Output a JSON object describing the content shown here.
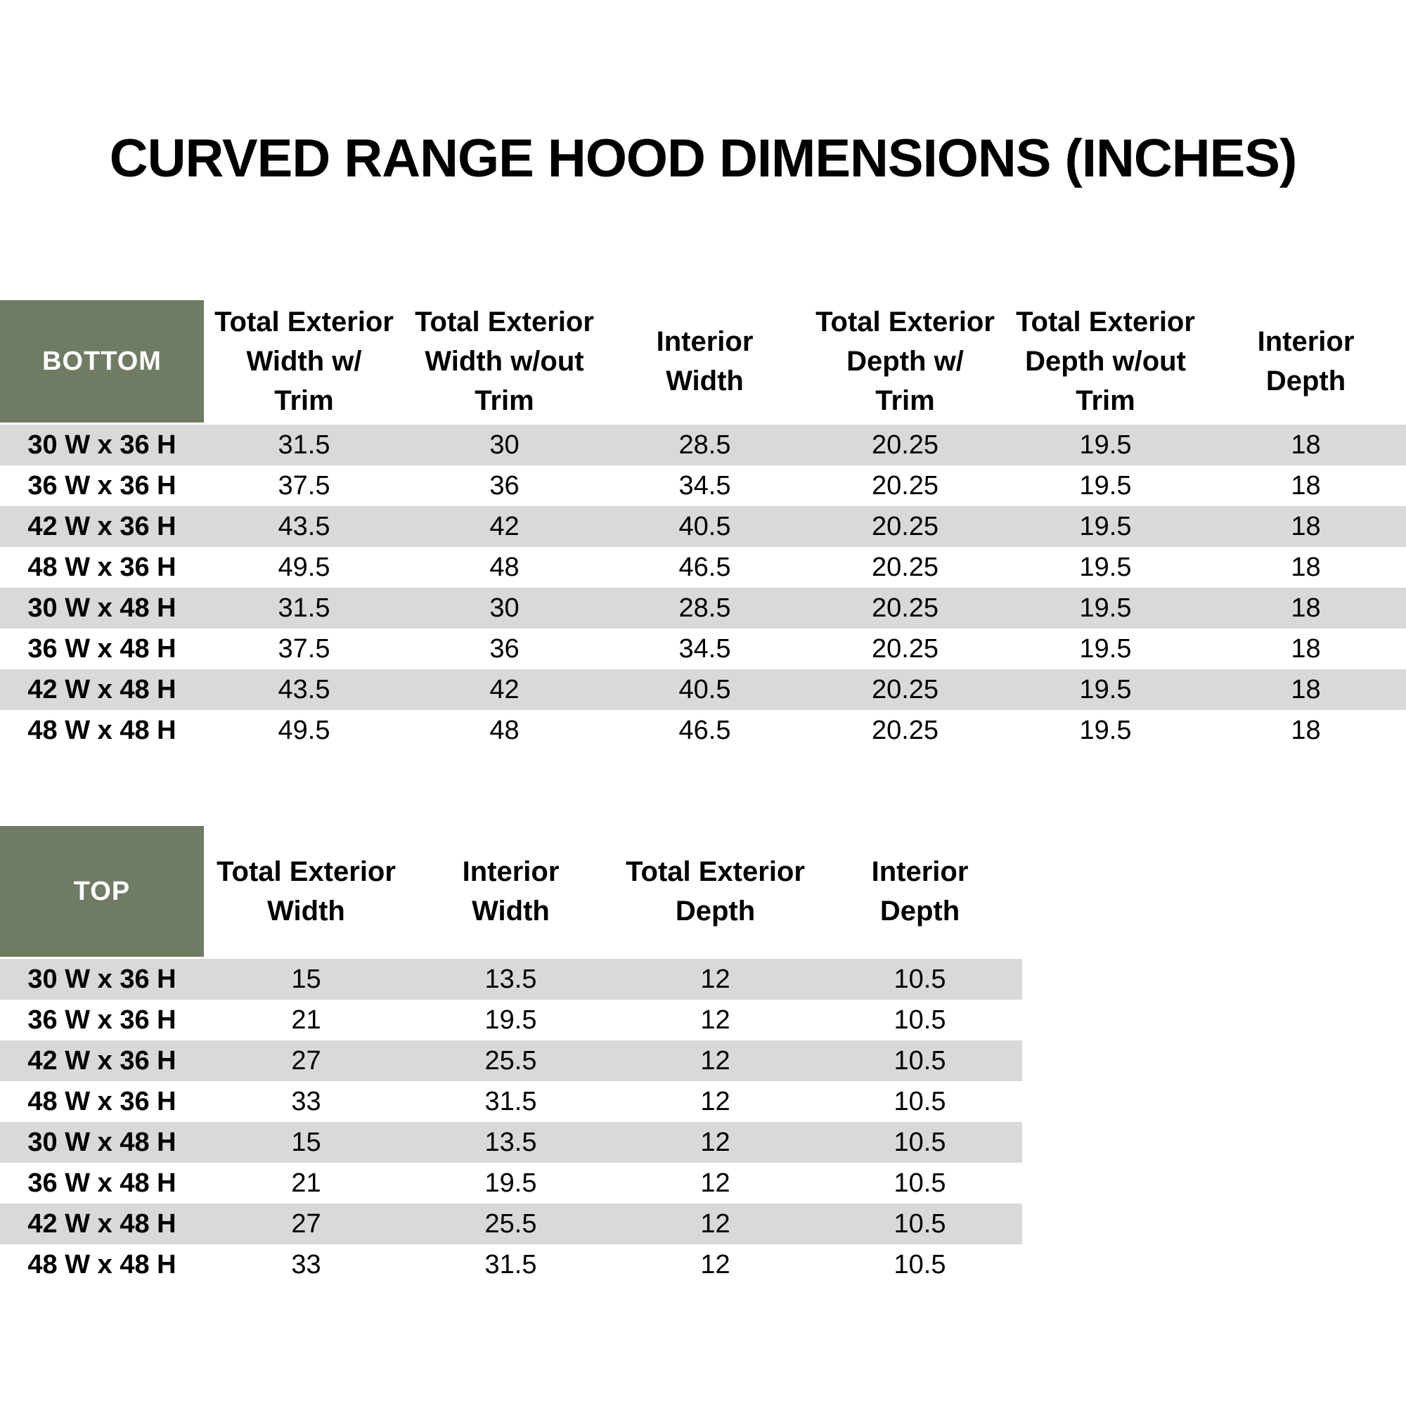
{
  "page": {
    "title": "CURVED RANGE HOOD DIMENSIONS (INCHES)"
  },
  "colors": {
    "header_green": "#6F7B62",
    "stripe_gray": "#D9D9D9",
    "header_text": "#FFFFFF",
    "body_text": "#000000",
    "page_bg": "#FFFFFF"
  },
  "bottom_table": {
    "corner_label": "BOTTOM",
    "column_headers": [
      {
        "lines": [
          "Total Exterior",
          "Width w/",
          "Trim"
        ]
      },
      {
        "lines": [
          "Total Exterior",
          "Width w/out",
          "Trim"
        ]
      },
      {
        "lines": [
          "Interior",
          "Width"
        ]
      },
      {
        "lines": [
          "Total Exterior",
          "Depth w/",
          "Trim"
        ]
      },
      {
        "lines": [
          "Total Exterior",
          "Depth w/out",
          "Trim"
        ]
      },
      {
        "lines": [
          "Interior",
          "Depth"
        ]
      }
    ],
    "rows": [
      {
        "label": "30 W x 36 H",
        "values": [
          "31.5",
          "30",
          "28.5",
          "20.25",
          "19.5",
          "18"
        ]
      },
      {
        "label": "36 W x 36 H",
        "values": [
          "37.5",
          "36",
          "34.5",
          "20.25",
          "19.5",
          "18"
        ]
      },
      {
        "label": "42 W x 36 H",
        "values": [
          "43.5",
          "42",
          "40.5",
          "20.25",
          "19.5",
          "18"
        ]
      },
      {
        "label": "48 W x 36 H",
        "values": [
          "49.5",
          "48",
          "46.5",
          "20.25",
          "19.5",
          "18"
        ]
      },
      {
        "label": "30 W x 48 H",
        "values": [
          "31.5",
          "30",
          "28.5",
          "20.25",
          "19.5",
          "18"
        ]
      },
      {
        "label": "36 W x 48 H",
        "values": [
          "37.5",
          "36",
          "34.5",
          "20.25",
          "19.5",
          "18"
        ]
      },
      {
        "label": "42 W x 48 H",
        "values": [
          "43.5",
          "42",
          "40.5",
          "20.25",
          "19.5",
          "18"
        ]
      },
      {
        "label": "48 W x 48 H",
        "values": [
          "49.5",
          "48",
          "46.5",
          "20.25",
          "19.5",
          "18"
        ]
      }
    ]
  },
  "top_table": {
    "corner_label": "TOP",
    "column_headers": [
      {
        "lines": [
          "Total Exterior",
          "Width"
        ]
      },
      {
        "lines": [
          "Interior",
          "Width"
        ]
      },
      {
        "lines": [
          "Total Exterior",
          "Depth"
        ]
      },
      {
        "lines": [
          "Interior",
          "Depth"
        ]
      }
    ],
    "rows": [
      {
        "label": "30 W x 36 H",
        "values": [
          "15",
          "13.5",
          "12",
          "10.5"
        ]
      },
      {
        "label": "36 W x 36 H",
        "values": [
          "21",
          "19.5",
          "12",
          "10.5"
        ]
      },
      {
        "label": "42 W x 36 H",
        "values": [
          "27",
          "25.5",
          "12",
          "10.5"
        ]
      },
      {
        "label": "48 W x 36 H",
        "values": [
          "33",
          "31.5",
          "12",
          "10.5"
        ]
      },
      {
        "label": "30 W x 48 H",
        "values": [
          "15",
          "13.5",
          "12",
          "10.5"
        ]
      },
      {
        "label": "36 W x 48 H",
        "values": [
          "21",
          "19.5",
          "12",
          "10.5"
        ]
      },
      {
        "label": "42 W x 48 H",
        "values": [
          "27",
          "25.5",
          "12",
          "10.5"
        ]
      },
      {
        "label": "48 W x 48 H",
        "values": [
          "33",
          "31.5",
          "12",
          "10.5"
        ]
      }
    ]
  }
}
